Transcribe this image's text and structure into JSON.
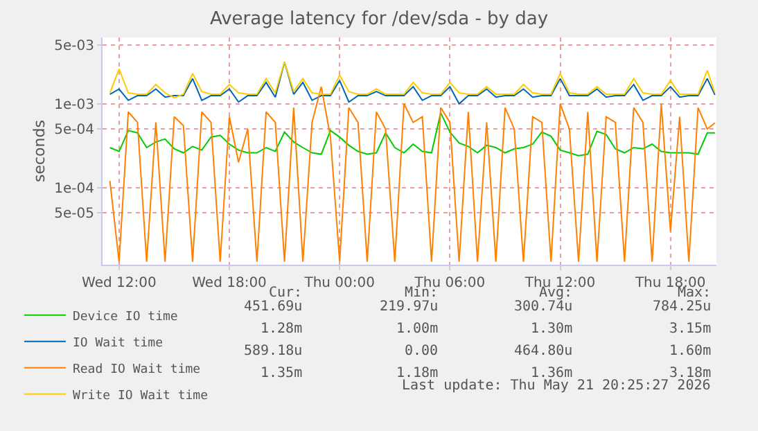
{
  "chart_data": {
    "type": "line",
    "title": "Average latency for /dev/sda - by day",
    "ylabel": "seconds",
    "x": [
      "2026-05-20T11:30",
      "2026-05-20T12:00",
      "2026-05-20T12:30",
      "2026-05-20T13:00",
      "2026-05-20T13:30",
      "2026-05-20T14:00",
      "2026-05-20T14:30",
      "2026-05-20T15:00",
      "2026-05-20T15:30",
      "2026-05-20T16:00",
      "2026-05-20T16:30",
      "2026-05-20T17:00",
      "2026-05-20T17:30",
      "2026-05-20T18:00",
      "2026-05-20T18:30",
      "2026-05-20T19:00",
      "2026-05-20T19:30",
      "2026-05-20T20:00",
      "2026-05-20T20:30",
      "2026-05-20T21:00",
      "2026-05-20T21:30",
      "2026-05-20T22:00",
      "2026-05-20T22:30",
      "2026-05-20T23:00",
      "2026-05-20T23:30",
      "2026-05-21T00:00",
      "2026-05-21T00:30",
      "2026-05-21T01:00",
      "2026-05-21T01:30",
      "2026-05-21T02:00",
      "2026-05-21T02:30",
      "2026-05-21T03:00",
      "2026-05-21T03:30",
      "2026-05-21T04:00",
      "2026-05-21T04:30",
      "2026-05-21T05:00",
      "2026-05-21T05:30",
      "2026-05-21T06:00",
      "2026-05-21T06:30",
      "2026-05-21T07:00",
      "2026-05-21T07:30",
      "2026-05-21T08:00",
      "2026-05-21T08:30",
      "2026-05-21T09:00",
      "2026-05-21T09:30",
      "2026-05-21T10:00",
      "2026-05-21T10:30",
      "2026-05-21T11:00",
      "2026-05-21T11:30",
      "2026-05-21T12:00",
      "2026-05-21T12:30",
      "2026-05-21T13:00",
      "2026-05-21T13:30",
      "2026-05-21T14:00",
      "2026-05-21T14:30",
      "2026-05-21T15:00",
      "2026-05-21T15:30",
      "2026-05-21T16:00",
      "2026-05-21T16:30",
      "2026-05-21T17:00",
      "2026-05-21T17:30",
      "2026-05-21T18:00",
      "2026-05-21T18:30",
      "2026-05-21T19:00",
      "2026-05-21T19:30",
      "2026-05-21T20:00",
      "2026-05-21T20:25"
    ],
    "series": [
      {
        "name": "Device IO time",
        "color": "#00cc00",
        "values": [
          0.0003,
          0.00027,
          0.00048,
          0.00045,
          0.0003,
          0.00035,
          0.00038,
          0.00029,
          0.00026,
          0.00031,
          0.00028,
          0.0004,
          0.00042,
          0.00033,
          0.00028,
          0.00026,
          0.00026,
          0.0003,
          0.00027,
          0.00046,
          0.00035,
          0.0003,
          0.00026,
          0.00025,
          0.00048,
          0.0004,
          0.00032,
          0.00027,
          0.00025,
          0.00026,
          0.00045,
          0.0003,
          0.00026,
          0.00033,
          0.00027,
          0.00026,
          0.00078,
          0.00046,
          0.00034,
          0.00031,
          0.00026,
          0.00032,
          0.0003,
          0.00026,
          0.00029,
          0.0003,
          0.00033,
          0.00046,
          0.00041,
          0.00028,
          0.00026,
          0.00024,
          0.00025,
          0.00047,
          0.00043,
          0.00029,
          0.00026,
          0.0003,
          0.00029,
          0.00033,
          0.00027,
          0.00026,
          0.00026,
          0.00026,
          0.00025,
          0.00045,
          0.00045
        ]
      },
      {
        "name": "IO Wait time",
        "color": "#0066b3",
        "values": [
          0.0013,
          0.0015,
          0.0011,
          0.00125,
          0.00125,
          0.0015,
          0.0012,
          0.00125,
          0.00125,
          0.002,
          0.0011,
          0.00125,
          0.00125,
          0.0015,
          0.00105,
          0.00125,
          0.00125,
          0.0018,
          0.0012,
          0.00315,
          0.0013,
          0.0018,
          0.0011,
          0.00125,
          0.00125,
          0.0019,
          0.00105,
          0.00125,
          0.00125,
          0.0014,
          0.00125,
          0.00125,
          0.00125,
          0.0016,
          0.0011,
          0.00125,
          0.00125,
          0.0016,
          0.001,
          0.00125,
          0.00125,
          0.0015,
          0.0012,
          0.00125,
          0.00125,
          0.0015,
          0.0012,
          0.00125,
          0.00125,
          0.002,
          0.00125,
          0.00125,
          0.00125,
          0.0015,
          0.0012,
          0.00125,
          0.00125,
          0.0017,
          0.0011,
          0.00125,
          0.00125,
          0.0016,
          0.0012,
          0.00125,
          0.00125,
          0.002,
          0.00128
        ]
      },
      {
        "name": "Read IO Wait time",
        "color": "#ff8000",
        "values": [
          0.00012,
          1.3e-05,
          0.0008,
          0.0006,
          1.3e-05,
          0.0006,
          1.3e-05,
          0.0007,
          0.00055,
          1.3e-05,
          0.0008,
          0.0006,
          1.3e-05,
          0.0007,
          0.0002,
          0.0005,
          1.3e-05,
          0.0008,
          0.0006,
          1.3e-05,
          0.0009,
          1.3e-05,
          0.0006,
          0.0016,
          0.0004,
          1.3e-05,
          0.0009,
          0.0006,
          1.3e-05,
          0.0008,
          0.0005,
          1.3e-05,
          0.001,
          0.0006,
          0.0007,
          1.3e-05,
          0.0009,
          0.0006,
          1.3e-05,
          0.0008,
          1.3e-05,
          0.0006,
          1.3e-05,
          0.0009,
          0.0005,
          1.3e-05,
          0.0007,
          0.0006,
          1.3e-05,
          0.001,
          0.0005,
          1.3e-05,
          0.0008,
          1.3e-05,
          0.0007,
          0.0006,
          1.3e-05,
          0.0009,
          0.0006,
          1.3e-05,
          0.001,
          3e-05,
          0.0007,
          1.3e-05,
          0.0009,
          0.0005,
          0.00059
        ]
      },
      {
        "name": "Write IO Wait time",
        "color": "#ffcc00",
        "values": [
          0.00135,
          0.0026,
          0.00135,
          0.0013,
          0.0013,
          0.0017,
          0.00135,
          0.00118,
          0.0013,
          0.0023,
          0.0014,
          0.0013,
          0.0013,
          0.0017,
          0.00135,
          0.0013,
          0.0013,
          0.002,
          0.00135,
          0.00318,
          0.0014,
          0.002,
          0.00135,
          0.0013,
          0.0013,
          0.0022,
          0.0014,
          0.0013,
          0.0013,
          0.0015,
          0.0013,
          0.0013,
          0.0013,
          0.0018,
          0.00135,
          0.0013,
          0.0013,
          0.0018,
          0.00135,
          0.0013,
          0.0013,
          0.0016,
          0.0013,
          0.0013,
          0.0013,
          0.0017,
          0.00135,
          0.0013,
          0.0013,
          0.0023,
          0.00135,
          0.0013,
          0.0013,
          0.0016,
          0.0013,
          0.0013,
          0.0013,
          0.002,
          0.00135,
          0.0013,
          0.0013,
          0.0019,
          0.0013,
          0.0013,
          0.0013,
          0.0025,
          0.00135
        ]
      }
    ],
    "log": "y",
    "ylim": [
      1.2e-05,
      0.0062
    ],
    "yticks": [
      {
        "value": 5e-05,
        "label": "5e-05"
      },
      {
        "value": 0.0001,
        "label": "1e-04"
      },
      {
        "value": 0.0005,
        "label": "5e-04"
      },
      {
        "value": 0.001,
        "label": "1e-03"
      },
      {
        "value": 0.005,
        "label": "5e-03"
      }
    ],
    "xlim": [
      "2026-05-20T11:06",
      "2026-05-21T20:30"
    ],
    "xticks": [
      {
        "value": "2026-05-20T12:00",
        "label": "Wed 12:00"
      },
      {
        "value": "2026-05-20T18:00",
        "label": "Wed 18:00"
      },
      {
        "value": "2026-05-21T00:00",
        "label": "Thu 00:00"
      },
      {
        "value": "2026-05-21T06:00",
        "label": "Thu 06:00"
      },
      {
        "value": "2026-05-21T12:00",
        "label": "Thu 12:00"
      },
      {
        "value": "2026-05-21T18:00",
        "label": "Thu 18:00"
      }
    ],
    "grid": true,
    "legend": "bottom",
    "marker": "none",
    "line_style": "solid",
    "annotations": [
      "Cur:",
      "Min:",
      "Avg:",
      "Max:",
      "451.69u",
      "219.97u",
      "300.74u",
      "784.25u",
      "1.28m",
      "1.00m",
      "1.30m",
      "3.15m",
      "589.18u",
      "0.00",
      "464.80u",
      "1.60m",
      "1.35m",
      "1.18m",
      "1.36m",
      "3.18m",
      "Last update: Thu May 21 20:25:27 2026"
    ]
  }
}
